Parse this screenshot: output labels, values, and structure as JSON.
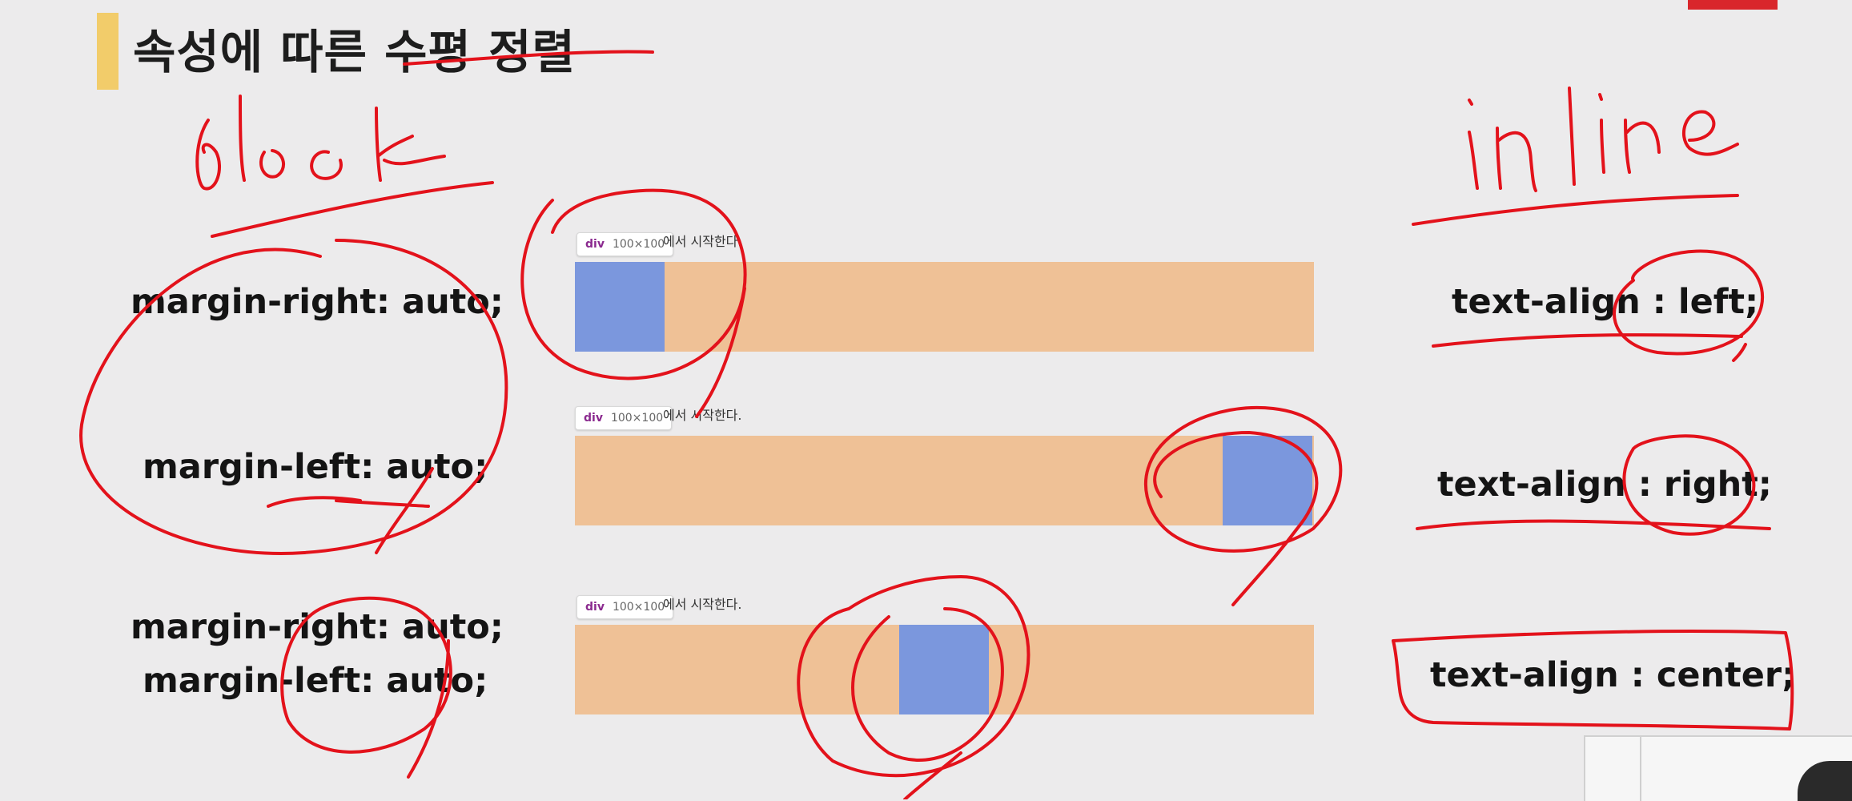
{
  "slide": {
    "title": "속성에 따른 수평 정렬"
  },
  "left_props": {
    "row1": "margin-right: auto;",
    "row2": "margin-left: auto;",
    "row3_line1": "margin-right: auto;",
    "row3_line2": "margin-left: auto;"
  },
  "right_props": {
    "row1": "text-align : left;",
    "row2": "text-align : right;",
    "row3": "text-align : center;"
  },
  "demos": [
    {
      "tag": "div",
      "size": "100×100",
      "caption": "에서 시작한다.",
      "position": "left"
    },
    {
      "tag": "div",
      "size": "100×100",
      "caption": "에서 시작한다.",
      "position": "right"
    },
    {
      "tag": "div",
      "size": "100×100",
      "caption": "에서 시작한다.",
      "position": "center"
    }
  ],
  "annotations": {
    "left_heading": "block",
    "right_heading": "inline",
    "ink_color": "#e3121b"
  },
  "colors": {
    "background": "#ecebec",
    "title_accent": "#f2cc6a",
    "container": "#efc196",
    "block_box": "#7b97dd"
  }
}
